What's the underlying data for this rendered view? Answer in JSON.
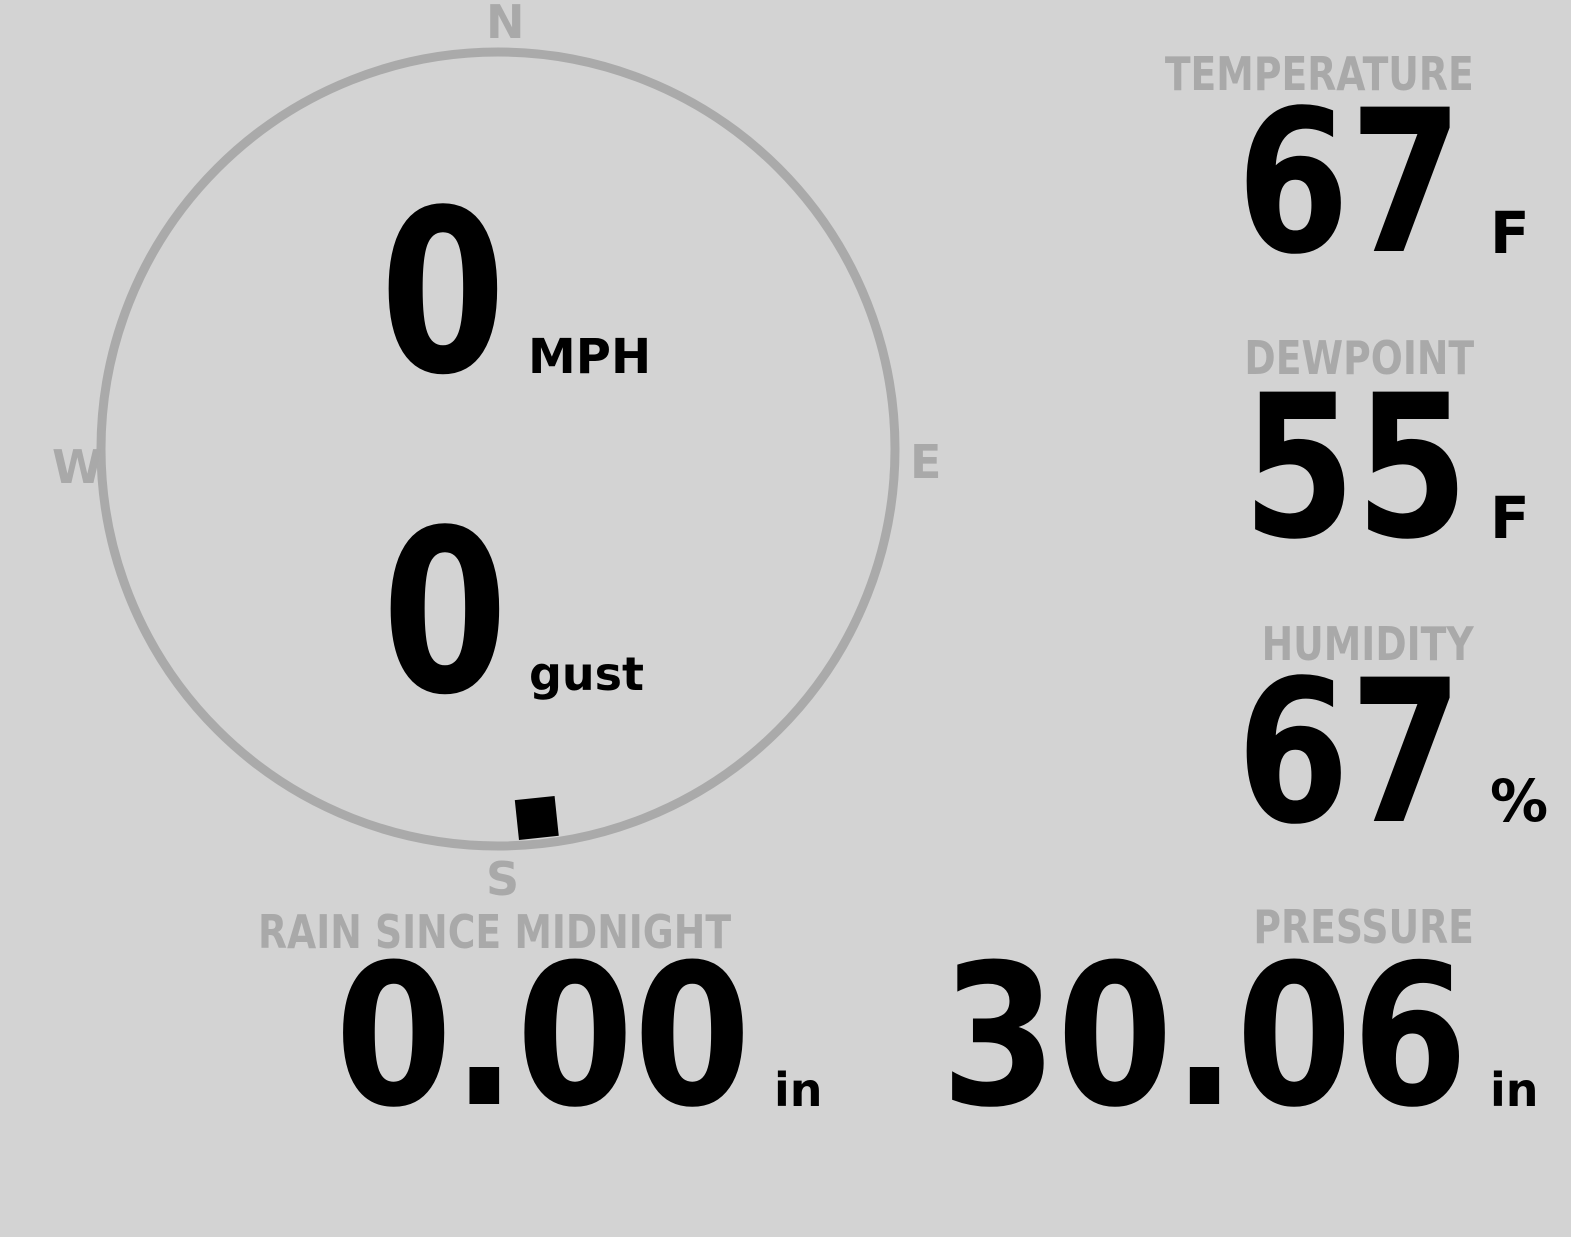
{
  "compass": {
    "north": "N",
    "south": "S",
    "east": "E",
    "west": "W",
    "direction_degrees": 174,
    "ring_color": "#aaaaaa",
    "marker_color": "#000000"
  },
  "wind": {
    "speed": "0",
    "speed_unit": "MPH",
    "gust": "0",
    "gust_unit": "gust"
  },
  "temperature": {
    "label": "TEMPERATURE",
    "value": "67",
    "unit": "F"
  },
  "dewpoint": {
    "label": "DEWPOINT",
    "value": "55",
    "unit": "F"
  },
  "humidity": {
    "label": "HUMIDITY",
    "value": "67",
    "unit": "%"
  },
  "rain": {
    "label": "RAIN SINCE MIDNIGHT",
    "value": "0.00",
    "unit": "in"
  },
  "pressure": {
    "label": "PRESSURE",
    "value": "30.06",
    "unit": "in"
  },
  "colors": {
    "background": "#d3d3d3",
    "label": "#a9a9a9",
    "value": "#000000"
  }
}
